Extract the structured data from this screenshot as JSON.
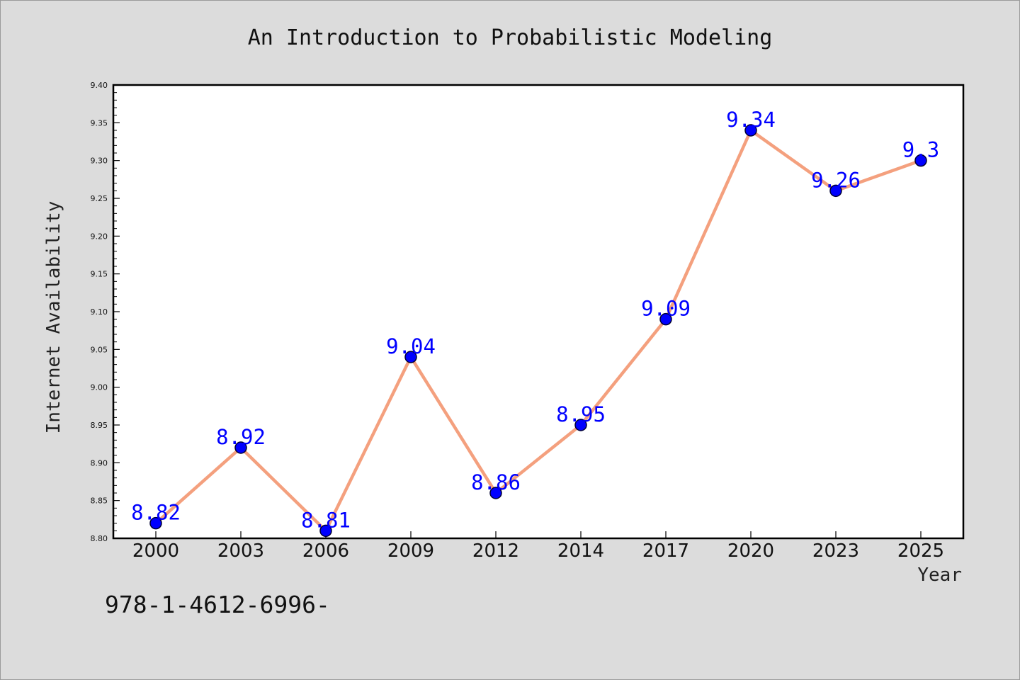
{
  "chart_data": {
    "type": "line",
    "title": "An Introduction to Probabilistic Modeling",
    "xlabel": "Year",
    "ylabel": "Internet Availability",
    "categories": [
      "2000",
      "2003",
      "2006",
      "2009",
      "2012",
      "2014",
      "2017",
      "2020",
      "2023",
      "2025"
    ],
    "series": [
      {
        "values": [
          8.82,
          8.92,
          8.81,
          9.04,
          8.86,
          8.95,
          9.09,
          9.34,
          9.26,
          9.3
        ],
        "data_labels": [
          "8.82",
          "8.92",
          "8.81",
          "9.04",
          "8.86",
          "8.95",
          "9.09",
          "9.34",
          "9.26",
          "9.3"
        ]
      }
    ],
    "ylim": [
      8.8,
      9.4
    ],
    "y_ticks": [
      "8.80",
      "8.85",
      "8.90",
      "8.95",
      "9.00",
      "9.05",
      "9.10",
      "9.15",
      "9.20",
      "9.25",
      "9.30",
      "9.35",
      "9.40"
    ],
    "grid": false,
    "legend": "none",
    "colors": {
      "line": "#f4a07e",
      "marker_fill": "#0000ff",
      "marker_edge": "#000033",
      "data_label": "#0000ff",
      "plot_background": "#ffffff",
      "figure_background": "#dcdcdc"
    }
  },
  "footer": {
    "code": "978-1-4612-6996-"
  }
}
